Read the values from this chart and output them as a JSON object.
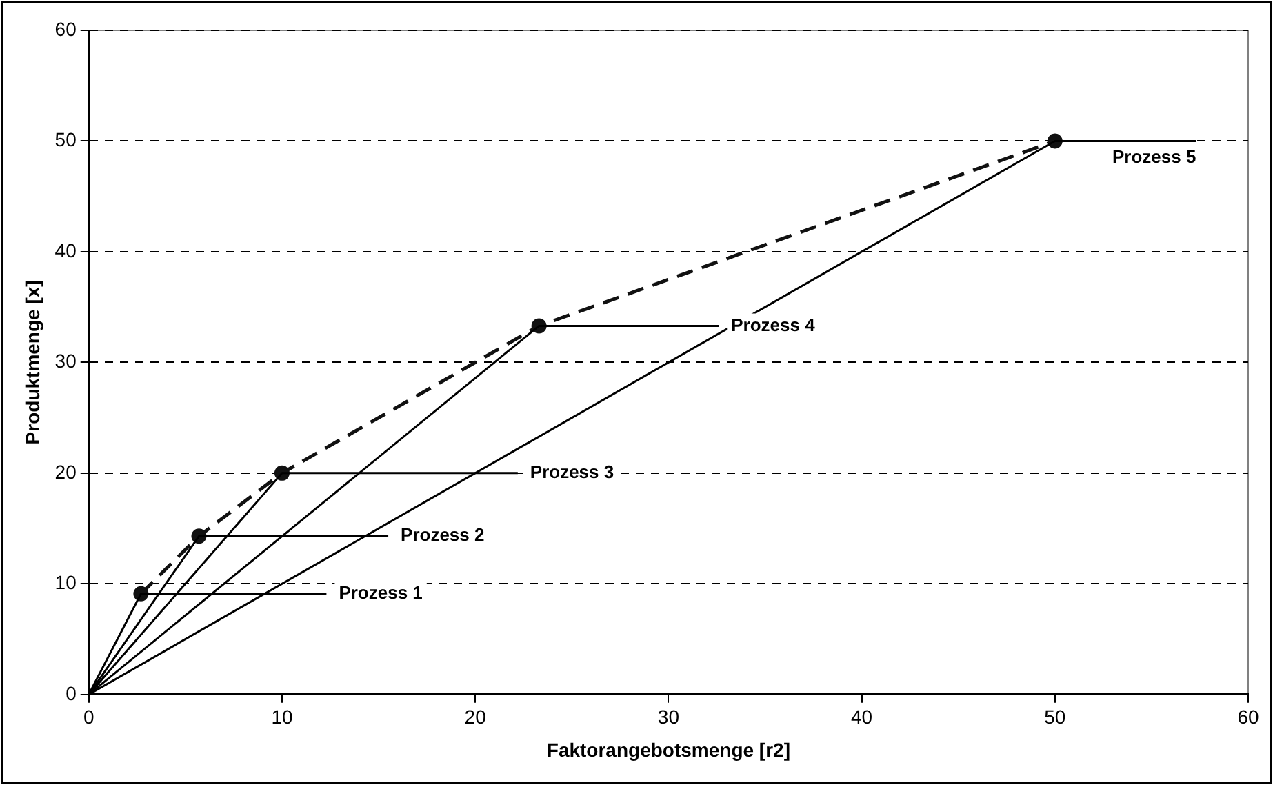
{
  "chart_data": {
    "type": "line",
    "xlabel": "Faktorangebotsmenge [r2]",
    "ylabel": "Produktmenge [x]",
    "xlim": [
      0,
      60
    ],
    "xticks": [
      0,
      10,
      20,
      30,
      40,
      50,
      60
    ],
    "ylim": [
      0,
      60
    ],
    "yticks": [
      0,
      10,
      20,
      30,
      40,
      50,
      60
    ],
    "grid": "y",
    "legend": false,
    "marker": "circle",
    "series": [
      {
        "name": "Prozess 1",
        "color": "#000000",
        "x": [
          0,
          2.7,
          12.3
        ],
        "values": [
          0,
          9.1,
          9.1
        ],
        "marker": "none",
        "line_style": "solid"
      },
      {
        "name": "Prozess 2",
        "color": "#000000",
        "x": [
          0,
          5.7,
          15.5
        ],
        "values": [
          0,
          14.3,
          14.3
        ],
        "marker": "none",
        "line_style": "solid"
      },
      {
        "name": "Prozess 3",
        "color": "#000000",
        "x": [
          0,
          10,
          22.2
        ],
        "values": [
          0,
          20,
          20
        ],
        "marker": "none",
        "line_style": "solid"
      },
      {
        "name": "Prozess 4",
        "color": "#000000",
        "x": [
          0,
          23.3,
          32.6
        ],
        "values": [
          0,
          33.3,
          33.3
        ],
        "marker": "none",
        "line_style": "solid"
      },
      {
        "name": "Prozess 5",
        "color": "#000000",
        "x": [
          0,
          50,
          57.3
        ],
        "values": [
          0,
          50,
          50
        ],
        "marker": "none",
        "line_style": "solid"
      },
      {
        "color": "#111111",
        "x": [
          2.7,
          5.7,
          10,
          23.3,
          50
        ],
        "values": [
          9.1,
          14.3,
          20,
          33.3,
          50
        ],
        "line_style": "dashed"
      }
    ]
  }
}
